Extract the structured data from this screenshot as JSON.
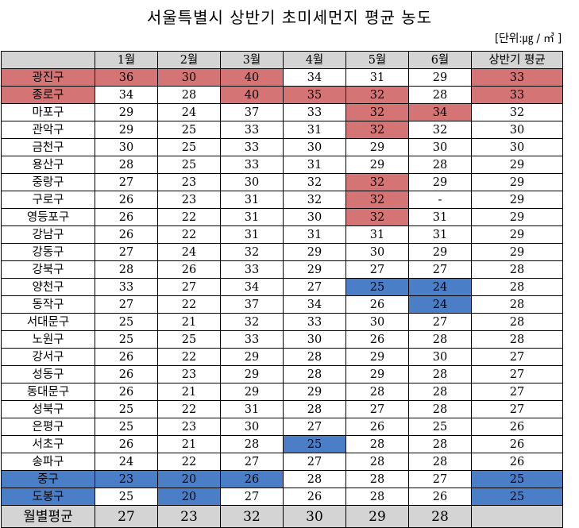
{
  "title": "서울특별시 상반기 초미세먼지 평균 농도",
  "unit": "[단위:㎍ / ㎥ ]",
  "columns": [
    "",
    "1월",
    "2월",
    "3월",
    "4월",
    "5월",
    "6월",
    "상반기 평균"
  ],
  "highlight_colors": {
    "red": "#d47474",
    "blue": "#4a7fc8",
    "header_gray": "#d4d4d4"
  },
  "rows": [
    {
      "district": "광진구",
      "values": [
        "36",
        "30",
        "40",
        "34",
        "31",
        "29",
        "33"
      ],
      "hl": [
        "r",
        "r",
        "r",
        "r",
        "",
        "",
        "",
        "r"
      ]
    },
    {
      "district": "종로구",
      "values": [
        "34",
        "28",
        "40",
        "35",
        "32",
        "28",
        "33"
      ],
      "hl": [
        "r",
        "",
        "",
        "r",
        "r",
        "r",
        "",
        "r"
      ]
    },
    {
      "district": "마포구",
      "values": [
        "29",
        "24",
        "37",
        "33",
        "32",
        "34",
        "32"
      ],
      "hl": [
        "",
        "",
        "",
        "",
        "",
        "r",
        "r",
        ""
      ]
    },
    {
      "district": "관악구",
      "values": [
        "29",
        "25",
        "33",
        "31",
        "32",
        "32",
        "30"
      ],
      "hl": [
        "",
        "",
        "",
        "",
        "",
        "r",
        "",
        ""
      ]
    },
    {
      "district": "금천구",
      "values": [
        "30",
        "25",
        "33",
        "30",
        "29",
        "30",
        "30"
      ],
      "hl": [
        "",
        "",
        "",
        "",
        "",
        "",
        "",
        ""
      ]
    },
    {
      "district": "용산구",
      "values": [
        "28",
        "25",
        "33",
        "31",
        "29",
        "28",
        "29"
      ],
      "hl": [
        "",
        "",
        "",
        "",
        "",
        "",
        "",
        ""
      ]
    },
    {
      "district": "중랑구",
      "values": [
        "27",
        "23",
        "30",
        "32",
        "32",
        "29",
        "29"
      ],
      "hl": [
        "",
        "",
        "",
        "",
        "",
        "r",
        "",
        ""
      ]
    },
    {
      "district": "구로구",
      "values": [
        "26",
        "23",
        "31",
        "32",
        "32",
        "-",
        "29"
      ],
      "hl": [
        "",
        "",
        "",
        "",
        "",
        "r",
        "",
        ""
      ]
    },
    {
      "district": "영등포구",
      "values": [
        "26",
        "22",
        "31",
        "30",
        "32",
        "31",
        "29"
      ],
      "hl": [
        "",
        "",
        "",
        "",
        "",
        "r",
        "",
        ""
      ]
    },
    {
      "district": "강남구",
      "values": [
        "26",
        "22",
        "31",
        "31",
        "31",
        "31",
        "29"
      ],
      "hl": [
        "",
        "",
        "",
        "",
        "",
        "",
        "",
        ""
      ]
    },
    {
      "district": "강동구",
      "values": [
        "27",
        "24",
        "32",
        "29",
        "30",
        "29",
        "29"
      ],
      "hl": [
        "",
        "",
        "",
        "",
        "",
        "",
        "",
        ""
      ]
    },
    {
      "district": "강북구",
      "values": [
        "28",
        "26",
        "33",
        "29",
        "27",
        "27",
        "28"
      ],
      "hl": [
        "",
        "",
        "",
        "",
        "",
        "",
        "",
        ""
      ]
    },
    {
      "district": "양천구",
      "values": [
        "33",
        "27",
        "34",
        "27",
        "25",
        "24",
        "28"
      ],
      "hl": [
        "",
        "",
        "",
        "",
        "",
        "b",
        "b",
        ""
      ]
    },
    {
      "district": "동작구",
      "values": [
        "27",
        "22",
        "37",
        "34",
        "26",
        "24",
        "28"
      ],
      "hl": [
        "",
        "",
        "",
        "",
        "",
        "",
        "b",
        ""
      ]
    },
    {
      "district": "서대문구",
      "values": [
        "25",
        "21",
        "32",
        "33",
        "30",
        "27",
        "28"
      ],
      "hl": [
        "",
        "",
        "",
        "",
        "",
        "",
        "",
        ""
      ]
    },
    {
      "district": "노원구",
      "values": [
        "25",
        "25",
        "33",
        "30",
        "26",
        "28",
        "28"
      ],
      "hl": [
        "",
        "",
        "",
        "",
        "",
        "",
        "",
        ""
      ]
    },
    {
      "district": "강서구",
      "values": [
        "26",
        "22",
        "29",
        "28",
        "29",
        "30",
        "27"
      ],
      "hl": [
        "",
        "",
        "",
        "",
        "",
        "",
        "",
        ""
      ]
    },
    {
      "district": "성동구",
      "values": [
        "26",
        "23",
        "29",
        "28",
        "29",
        "28",
        "27"
      ],
      "hl": [
        "",
        "",
        "",
        "",
        "",
        "",
        "",
        ""
      ]
    },
    {
      "district": "동대문구",
      "values": [
        "26",
        "21",
        "29",
        "29",
        "28",
        "28",
        "27"
      ],
      "hl": [
        "",
        "",
        "",
        "",
        "",
        "",
        "",
        ""
      ]
    },
    {
      "district": "성북구",
      "values": [
        "25",
        "22",
        "31",
        "28",
        "27",
        "28",
        "27"
      ],
      "hl": [
        "",
        "",
        "",
        "",
        "",
        "",
        "",
        ""
      ]
    },
    {
      "district": "은평구",
      "values": [
        "25",
        "23",
        "30",
        "27",
        "26",
        "25",
        "26"
      ],
      "hl": [
        "",
        "",
        "",
        "",
        "",
        "",
        "",
        ""
      ]
    },
    {
      "district": "서초구",
      "values": [
        "26",
        "21",
        "28",
        "25",
        "28",
        "28",
        "26"
      ],
      "hl": [
        "",
        "",
        "",
        "",
        "b",
        "",
        "",
        ""
      ]
    },
    {
      "district": "송파구",
      "values": [
        "24",
        "22",
        "27",
        "27",
        "28",
        "28",
        "26"
      ],
      "hl": [
        "",
        "",
        "",
        "",
        "",
        "",
        "",
        ""
      ]
    },
    {
      "district": "중구",
      "values": [
        "23",
        "20",
        "26",
        "28",
        "28",
        "27",
        "25"
      ],
      "hl": [
        "b",
        "b",
        "b",
        "b",
        "",
        "",
        "",
        "b"
      ]
    },
    {
      "district": "도봉구",
      "values": [
        "25",
        "20",
        "27",
        "26",
        "28",
        "26",
        "25"
      ],
      "hl": [
        "b",
        "",
        "b",
        "",
        "",
        "",
        "",
        "b"
      ]
    }
  ],
  "footer": {
    "label": "월별평균",
    "values": [
      "27",
      "23",
      "32",
      "30",
      "29",
      "28",
      ""
    ]
  }
}
